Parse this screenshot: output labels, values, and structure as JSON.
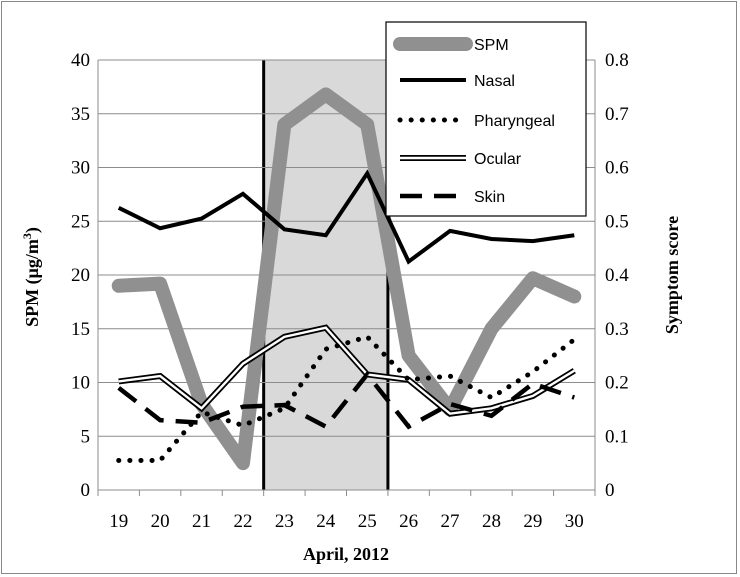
{
  "chart_data": {
    "type": "line",
    "categories": [
      "19",
      "20",
      "21",
      "22",
      "23",
      "24",
      "25",
      "26",
      "27",
      "28",
      "29",
      "30"
    ],
    "xlabel": "April, 2012",
    "ylabel_left": "SPM (μg/m³)",
    "ylabel_left_main": "SPM (μg/m",
    "ylabel_left_sup": "3",
    "ylabel_left_close": ")",
    "ylabel_right": "Symptom score",
    "ylim_left": [
      0,
      40
    ],
    "ylim_right": [
      0,
      0.8
    ],
    "yticks_left": [
      "0",
      "5",
      "10",
      "15",
      "20",
      "25",
      "30",
      "35",
      "40"
    ],
    "yticks_right": [
      "0",
      "0.1",
      "0.2",
      "0.3",
      "0.4",
      "0.5",
      "0.6",
      "0.7",
      "0.8"
    ],
    "grid": true,
    "legend_position": "top-right",
    "highlight_period": [
      "23",
      "25"
    ],
    "series": [
      {
        "name": "SPM",
        "axis": "left",
        "values": [
          19,
          19.2,
          8,
          2.5,
          34,
          36.8,
          34,
          12.5,
          7.5,
          15,
          19.7,
          18
        ],
        "color": "#909090",
        "style": "thick"
      },
      {
        "name": "Nasal",
        "axis": "right",
        "values": [
          0.525,
          0.487,
          0.505,
          0.551,
          0.485,
          0.474,
          0.589,
          0.425,
          0.482,
          0.467,
          0.463,
          0.474
        ],
        "color": "#000000",
        "style": "solid"
      },
      {
        "name": "Pharyngeal",
        "axis": "right",
        "values": [
          0.055,
          0.055,
          0.145,
          0.12,
          0.152,
          0.262,
          0.285,
          0.205,
          0.212,
          0.172,
          0.22,
          0.28
        ],
        "color": "#000000",
        "style": "dotted"
      },
      {
        "name": "Ocular",
        "axis": "right",
        "values": [
          0.202,
          0.212,
          0.152,
          0.235,
          0.285,
          0.302,
          0.215,
          0.205,
          0.142,
          0.152,
          0.175,
          0.222
        ],
        "color": "#000000",
        "style": "double"
      },
      {
        "name": "Skin",
        "axis": "right",
        "values": [
          0.19,
          0.13,
          0.125,
          0.155,
          0.158,
          0.118,
          0.215,
          0.118,
          0.16,
          0.138,
          0.198,
          0.172
        ],
        "color": "#000000",
        "style": "dashed"
      }
    ]
  }
}
